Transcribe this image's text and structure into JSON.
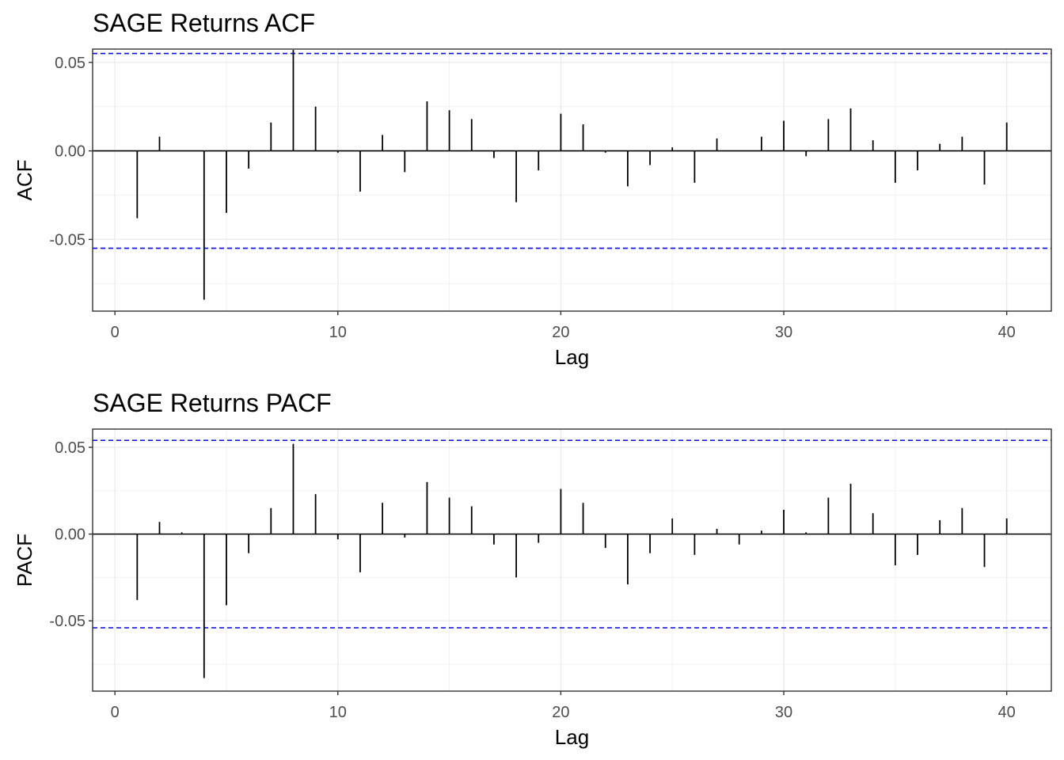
{
  "chart_data": [
    {
      "type": "bar",
      "title": "SAGE Returns ACF",
      "xlabel": "Lag",
      "ylabel": "ACF",
      "xlim": [
        -1,
        42
      ],
      "ylim": [
        -0.0905,
        0.0575
      ],
      "x_ticks": [
        0,
        10,
        20,
        30,
        40
      ],
      "y_ticks": [
        0.05,
        0.0,
        -0.05
      ],
      "y_tick_labels": [
        "0.05",
        "0.00",
        "-0.05"
      ],
      "grid": true,
      "confidence_bounds": [
        0.055,
        -0.055
      ],
      "confidence_color": "#0000ff",
      "bar_color": "#000000",
      "x": [
        1,
        2,
        3,
        4,
        5,
        6,
        7,
        8,
        9,
        10,
        11,
        12,
        13,
        14,
        15,
        16,
        17,
        18,
        19,
        20,
        21,
        22,
        23,
        24,
        25,
        26,
        27,
        28,
        29,
        30,
        31,
        32,
        33,
        34,
        35,
        36,
        37,
        38,
        39,
        40
      ],
      "values": [
        -0.038,
        0.008,
        0.0,
        -0.084,
        -0.035,
        -0.01,
        0.016,
        0.057,
        0.025,
        -0.001,
        -0.023,
        0.009,
        -0.012,
        0.028,
        0.023,
        0.018,
        -0.004,
        -0.029,
        -0.011,
        0.021,
        0.015,
        -0.001,
        -0.02,
        -0.008,
        0.002,
        -0.018,
        0.007,
        0.0,
        0.008,
        0.017,
        -0.003,
        0.018,
        0.024,
        0.006,
        -0.018,
        -0.011,
        0.004,
        0.008,
        -0.019,
        0.016
      ]
    },
    {
      "type": "bar",
      "title": "SAGE Returns PACF",
      "xlabel": "Lag",
      "ylabel": "PACF",
      "xlim": [
        -1,
        42
      ],
      "ylim": [
        -0.0905,
        0.0605
      ],
      "x_ticks": [
        0,
        10,
        20,
        30,
        40
      ],
      "y_ticks": [
        0.05,
        0.0,
        -0.05
      ],
      "y_tick_labels": [
        "0.05",
        "0.00",
        "-0.05"
      ],
      "grid": true,
      "confidence_bounds": [
        0.054,
        -0.054
      ],
      "confidence_color": "#0000ff",
      "bar_color": "#000000",
      "x": [
        1,
        2,
        3,
        4,
        5,
        6,
        7,
        8,
        9,
        10,
        11,
        12,
        13,
        14,
        15,
        16,
        17,
        18,
        19,
        20,
        21,
        22,
        23,
        24,
        25,
        26,
        27,
        28,
        29,
        30,
        31,
        32,
        33,
        34,
        35,
        36,
        37,
        38,
        39,
        40
      ],
      "values": [
        -0.038,
        0.007,
        0.001,
        -0.083,
        -0.041,
        -0.011,
        0.015,
        0.052,
        0.023,
        -0.003,
        -0.022,
        0.018,
        -0.002,
        0.03,
        0.021,
        0.016,
        -0.006,
        -0.025,
        -0.005,
        0.026,
        0.018,
        -0.008,
        -0.029,
        -0.011,
        0.009,
        -0.012,
        0.003,
        -0.006,
        0.002,
        0.014,
        0.001,
        0.021,
        0.029,
        0.012,
        -0.018,
        -0.012,
        0.008,
        0.015,
        -0.019,
        0.009
      ]
    }
  ]
}
